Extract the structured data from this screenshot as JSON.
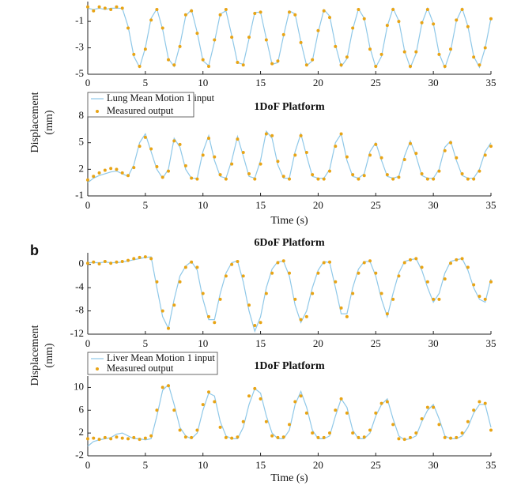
{
  "chart_data": [
    {
      "type": "line",
      "xlim": [
        0,
        35
      ],
      "ylim": [
        -5,
        0.5
      ],
      "xticks": [
        0,
        5,
        10,
        15,
        20,
        25,
        30,
        35
      ],
      "yticks": [
        -1,
        -3,
        -5
      ],
      "x": [
        0,
        0.5,
        1,
        1.5,
        2,
        2.5,
        3,
        3.5,
        4,
        4.5,
        5,
        5.5,
        6,
        6.5,
        7,
        7.5,
        8,
        8.5,
        9,
        9.5,
        10,
        10.5,
        11,
        11.5,
        12,
        12.5,
        13,
        13.5,
        14,
        14.5,
        15,
        15.5,
        16,
        16.5,
        17,
        17.5,
        18,
        18.5,
        19,
        19.5,
        20,
        20.5,
        21,
        21.5,
        22,
        22.5,
        23,
        23.5,
        24,
        24.5,
        25,
        25.5,
        26,
        26.5,
        27,
        27.5,
        28,
        28.5,
        29,
        29.5,
        30,
        30.5,
        31,
        31.5,
        32,
        32.5,
        33,
        33.5,
        34,
        34.5,
        35
      ],
      "series": [
        {
          "color": "#8fc8e8",
          "mode": "line",
          "values": [
            0,
            -0.1,
            0,
            -0.1,
            0,
            0,
            -0.01,
            -1.37,
            -3.64,
            -4.47,
            -3.0,
            -0.77,
            -0.05,
            -1.6,
            -3.82,
            -4.42,
            -2.79,
            -0.59,
            -0.11,
            -1.83,
            -3.98,
            -4.35,
            -2.55,
            -0.44,
            -0.2,
            -2.07,
            -4.13,
            -4.24,
            -2.31,
            -0.31,
            -0.31,
            -2.31,
            -4.25,
            -4.12,
            -2.07,
            -0.2,
            -0.44,
            -2.55,
            -4.35,
            -3.98,
            -1.83,
            -0.11,
            -0.6,
            -2.78,
            -4.42,
            -3.82,
            -1.6,
            -0.05,
            -0.77,
            -3.01,
            -4.47,
            -3.64,
            -1.37,
            -0.01,
            -0.95,
            -3.23,
            -4.5,
            -3.44,
            -1.16,
            0,
            -1.16,
            -3.44,
            -4.5,
            -3.23,
            -0.95,
            -0.01,
            -1.37,
            -3.64,
            -4.47,
            -3.0,
            -0.77
          ]
        },
        {
          "color": "#e8a415",
          "mode": "markers",
          "values": [
            0.1,
            -0.2,
            0.1,
            0,
            -0.1,
            0.1,
            0,
            -1.5,
            -3.5,
            -4.4,
            -3.1,
            -0.9,
            -0.1,
            -1.5,
            -3.9,
            -4.3,
            -2.9,
            -0.5,
            -0.2,
            -1.9,
            -3.9,
            -4.4,
            -2.4,
            -0.5,
            -0.1,
            -2.2,
            -4.1,
            -4.3,
            -2.2,
            -0.4,
            -0.3,
            -2.4,
            -4.2,
            -4.0,
            -2.0,
            -0.3,
            -0.5,
            -2.6,
            -4.3,
            -3.9,
            -1.7,
            -0.2,
            -0.7,
            -2.9,
            -4.3,
            -3.7,
            -1.5,
            -0.1,
            -0.8,
            -3.1,
            -4.4,
            -3.5,
            -1.3,
            -0.1,
            -1.0,
            -3.3,
            -4.4,
            -3.3,
            -1.1,
            -0.1,
            -1.2,
            -3.5,
            -4.4,
            -3.1,
            -0.9,
            -0.1,
            -1.4,
            -3.7,
            -4.3,
            -3.0,
            -0.8
          ]
        }
      ]
    },
    {
      "type": "line",
      "title": "1DoF Platform",
      "xlabel": "Time (s)",
      "ylabel": [
        "Displacement",
        "(mm)"
      ],
      "legend": "upper left",
      "xlim": [
        0,
        35
      ],
      "ylim": [
        -1,
        8
      ],
      "xticks": [
        0,
        5,
        10,
        15,
        20,
        25,
        30,
        35
      ],
      "yticks": [
        8,
        5,
        2,
        -1
      ],
      "x": [
        0,
        0.5,
        1,
        1.5,
        2,
        2.5,
        3,
        3.5,
        4,
        4.5,
        5,
        5.5,
        6,
        6.5,
        7,
        7.5,
        8,
        8.5,
        9,
        9.5,
        10,
        10.5,
        11,
        11.5,
        12,
        12.5,
        13,
        13.5,
        14,
        14.5,
        15,
        15.5,
        16,
        16.5,
        17,
        17.5,
        18,
        18.5,
        19,
        19.5,
        20,
        20.5,
        21,
        21.5,
        22,
        22.5,
        23,
        23.5,
        24,
        24.5,
        25,
        25.5,
        26,
        26.5,
        27,
        27.5,
        28,
        28.5,
        29,
        29.5,
        30,
        30.5,
        31,
        31.5,
        32,
        32.5,
        33,
        33.5,
        34,
        34.5,
        35
      ],
      "series": [
        {
          "name": "Lung Mean Motion 1 input",
          "color": "#8fc8e8",
          "mode": "line",
          "values": [
            0.5,
            1,
            1.3,
            1.5,
            1.7,
            1.8,
            1.5,
            1.2,
            2.5,
            5,
            6,
            4,
            2,
            1,
            2,
            5.5,
            4.5,
            2,
            1,
            1,
            4,
            5.8,
            3,
            1.2,
            1,
            3,
            5.7,
            3.5,
            1.2,
            1,
            3,
            6.3,
            5.5,
            2.5,
            1,
            1,
            4,
            6,
            3.5,
            1.2,
            1,
            1,
            2,
            5,
            6,
            3,
            1.2,
            1,
            1.5,
            4,
            5,
            3,
            1.2,
            1,
            1.2,
            3.5,
            5.2,
            3.5,
            1.3,
            1,
            1,
            2,
            4.5,
            5.2,
            3,
            1.3,
            1,
            1,
            2,
            4,
            5
          ]
        },
        {
          "name": "Measured output",
          "color": "#e8a415",
          "mode": "markers",
          "values": [
            0.8,
            1.2,
            1.6,
            1.9,
            2.1,
            2,
            1.6,
            1.3,
            2.2,
            4.6,
            5.6,
            4.3,
            2.3,
            1.1,
            1.8,
            5.2,
            4.8,
            2.4,
            1.0,
            0.9,
            3.6,
            5.5,
            3.4,
            1.4,
            0.9,
            2.6,
            5.4,
            3.9,
            1.5,
            0.9,
            2.6,
            6.0,
            5.8,
            2.9,
            1.2,
            0.9,
            3.6,
            5.8,
            3.9,
            1.4,
            0.9,
            0.9,
            1.8,
            4.6,
            6.0,
            3.4,
            1.4,
            0.9,
            1.3,
            3.6,
            4.8,
            3.3,
            1.4,
            0.9,
            1.1,
            3.1,
            4.9,
            3.8,
            1.5,
            0.9,
            0.9,
            1.8,
            4.1,
            5.0,
            3.3,
            1.5,
            0.9,
            0.9,
            1.8,
            3.6,
            4.6
          ]
        }
      ]
    },
    {
      "type": "line",
      "title": "6DoF Platform",
      "panel_label": "b",
      "xlim": [
        0,
        35
      ],
      "ylim": [
        -12,
        2
      ],
      "xticks": [
        0,
        5,
        10,
        15,
        20,
        25,
        30,
        35
      ],
      "yticks": [
        0,
        -4,
        -8,
        -12
      ],
      "x": [
        0,
        0.5,
        1,
        1.5,
        2,
        2.5,
        3,
        3.5,
        4,
        4.5,
        5,
        5.5,
        6,
        6.5,
        7,
        7.5,
        8,
        8.5,
        9,
        9.5,
        10,
        10.5,
        11,
        11.5,
        12,
        12.5,
        13,
        13.5,
        14,
        14.5,
        15,
        15.5,
        16,
        16.5,
        17,
        17.5,
        18,
        18.5,
        19,
        19.5,
        20,
        20.5,
        21,
        21.5,
        22,
        22.5,
        23,
        23.5,
        24,
        24.5,
        25,
        25.5,
        26,
        26.5,
        27,
        27.5,
        28,
        28.5,
        29,
        29.5,
        30,
        30.5,
        31,
        31.5,
        32,
        32.5,
        33,
        33.5,
        34,
        34.5,
        35
      ],
      "series": [
        {
          "color": "#8fc8e8",
          "mode": "line",
          "values": [
            0.3,
            0.3,
            0.3,
            0.4,
            0.3,
            0.3,
            0.4,
            0.6,
            0.8,
            1,
            1.2,
            1.3,
            -4,
            -9,
            -11,
            -6,
            -2,
            -0.3,
            0.5,
            -1,
            -6,
            -9.5,
            -9.5,
            -5,
            -1.5,
            0.3,
            0.6,
            -3,
            -8,
            -11.5,
            -9,
            -4,
            -0.8,
            0.5,
            0.5,
            -2,
            -7,
            -10,
            -8,
            -4,
            -1,
            0.5,
            0.3,
            -4,
            -8.5,
            -8.5,
            -4,
            -0.8,
            0.5,
            0.5,
            -2,
            -6,
            -9,
            -5,
            -1.5,
            0.5,
            0.8,
            1,
            -1,
            -4,
            -6.5,
            -5,
            -1.5,
            0.5,
            0.8,
            1,
            -1,
            -4,
            -6,
            -6.5,
            -2.5
          ]
        },
        {
          "color": "#e8a415",
          "mode": "markers",
          "values": [
            0.2,
            0.4,
            0.1,
            0.5,
            0.2,
            0.4,
            0.5,
            0.7,
            1,
            1.2,
            1.3,
            1,
            -3,
            -8,
            -11,
            -7,
            -3,
            -0.5,
            0.4,
            -0.5,
            -5,
            -9,
            -10,
            -6,
            -2,
            0,
            0.5,
            -2,
            -7,
            -10.5,
            -10,
            -5,
            -1.5,
            0.3,
            0.6,
            -1.5,
            -6,
            -9.5,
            -9,
            -5,
            -1.5,
            0.3,
            0.4,
            -3,
            -7.5,
            -9,
            -5,
            -1.5,
            0.3,
            0.6,
            -1.5,
            -5,
            -8.5,
            -6,
            -2,
            0.3,
            0.8,
            1,
            -0.5,
            -3,
            -6,
            -6,
            -2.5,
            0.2,
            0.8,
            1,
            -0.5,
            -3.5,
            -5.5,
            -6,
            -3
          ]
        }
      ]
    },
    {
      "type": "line",
      "title": "1DoF Platform",
      "xlabel": "Time (s)",
      "ylabel": [
        "Displacement",
        "(mm)"
      ],
      "legend": "upper left",
      "xlim": [
        0,
        35
      ],
      "ylim": [
        -2,
        12
      ],
      "xticks": [
        0,
        5,
        10,
        15,
        20,
        25,
        30,
        35
      ],
      "yticks": [
        10,
        6,
        2,
        -2
      ],
      "x": [
        0,
        0.5,
        1,
        1.5,
        2,
        2.5,
        3,
        3.5,
        4,
        4.5,
        5,
        5.5,
        6,
        6.5,
        7,
        7.5,
        8,
        8.5,
        9,
        9.5,
        10,
        10.5,
        11,
        11.5,
        12,
        12.5,
        13,
        13.5,
        14,
        14.5,
        15,
        15.5,
        16,
        16.5,
        17,
        17.5,
        18,
        18.5,
        19,
        19.5,
        20,
        20.5,
        21,
        21.5,
        22,
        22.5,
        23,
        23.5,
        24,
        24.5,
        25,
        25.5,
        26,
        26.5,
        27,
        27.5,
        28,
        28.5,
        29,
        29.5,
        30,
        30.5,
        31,
        31.5,
        32,
        32.5,
        33,
        33.5,
        34,
        34.5,
        35
      ],
      "series": [
        {
          "name": "Liver Mean Motion 1 input",
          "color": "#8fc8e8",
          "mode": "line",
          "values": [
            -0.3,
            0.5,
            0.8,
            1,
            1.2,
            1.8,
            2,
            1.5,
            1,
            1,
            0.8,
            1,
            5,
            9.5,
            10.5,
            7,
            3,
            1.5,
            1,
            2,
            6,
            9,
            8.5,
            4,
            1.5,
            1,
            1,
            3,
            7,
            9.8,
            9,
            5,
            2,
            1,
            1,
            2.5,
            7,
            9.3,
            6.5,
            2.5,
            1,
            1,
            1.5,
            5,
            8,
            6.5,
            2.5,
            1,
            1,
            2,
            5,
            7,
            8,
            4.5,
            1.5,
            0.8,
            1,
            1.5,
            4,
            6,
            7,
            4.5,
            1.5,
            1,
            1,
            1.5,
            3,
            5.5,
            7,
            7,
            3
          ]
        },
        {
          "name": "Measured output",
          "color": "#e8a415",
          "mode": "markers",
          "values": [
            1,
            1.1,
            0.9,
            1.2,
            1,
            1.3,
            1.1,
            1,
            1.2,
            0.9,
            1.1,
            1.5,
            6,
            10,
            10.3,
            6,
            2.5,
            1.3,
            1.2,
            2.5,
            7,
            9.2,
            7.5,
            3,
            1.2,
            1.1,
            1.3,
            4,
            8.5,
            9.8,
            8,
            4,
            1.5,
            1.2,
            1.3,
            3.5,
            7.5,
            8.5,
            5.5,
            2,
            1.2,
            1.2,
            2,
            6,
            8,
            5.5,
            2,
            1.2,
            1.3,
            2.5,
            5.5,
            7.2,
            7.5,
            3.5,
            1,
            0.9,
            1.2,
            2,
            4.5,
            6.5,
            6.5,
            3.5,
            1.2,
            1.1,
            1.2,
            2,
            4,
            6,
            7.5,
            7.2,
            2.5
          ]
        }
      ]
    }
  ]
}
